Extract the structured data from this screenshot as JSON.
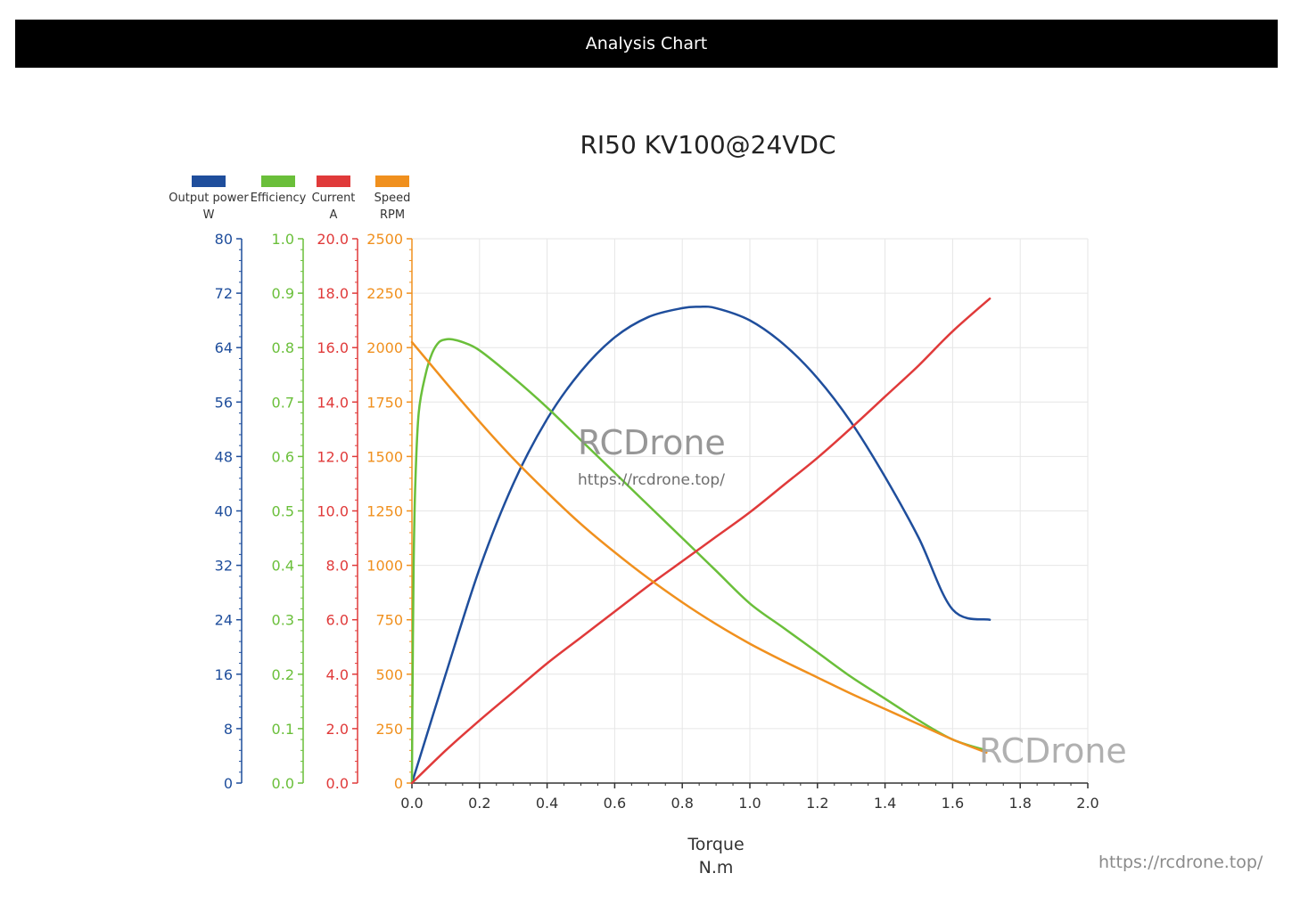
{
  "header": {
    "title": "Analysis Chart"
  },
  "watermarks": {
    "brand": "RCDrone",
    "url": "https://rcdrone.top/",
    "footer_url": "https://rcdrone.top/"
  },
  "chart_data": {
    "type": "line",
    "title": "RI50 KV100@24VDC",
    "xlabel": "Torque",
    "xunit": "N.m",
    "xlim": [
      0,
      2.0
    ],
    "xticks": [
      "0.0",
      "0.2",
      "0.4",
      "0.6",
      "0.8",
      "1.0",
      "1.2",
      "1.4",
      "1.6",
      "1.8",
      "2.0"
    ],
    "grid": true,
    "legend_position": "top-left",
    "axes": [
      {
        "key": "power",
        "name": "Output power",
        "unit": "W",
        "color": "#1f4e9c",
        "ylim": [
          0,
          80
        ],
        "ticks": [
          "0",
          "8",
          "16",
          "24",
          "32",
          "40",
          "48",
          "56",
          "64",
          "72",
          "80"
        ]
      },
      {
        "key": "eff",
        "name": "Efficiency",
        "unit": "",
        "color": "#6abf3a",
        "ylim": [
          0,
          1.0
        ],
        "ticks": [
          "0.0",
          "0.1",
          "0.2",
          "0.3",
          "0.4",
          "0.5",
          "0.6",
          "0.7",
          "0.8",
          "0.9",
          "1.0"
        ]
      },
      {
        "key": "current",
        "name": "Current",
        "unit": "A",
        "color": "#e03a3a",
        "ylim": [
          0,
          20
        ],
        "ticks": [
          "0.0",
          "2.0",
          "4.0",
          "6.0",
          "8.0",
          "10.0",
          "12.0",
          "14.0",
          "16.0",
          "18.0",
          "20.0"
        ]
      },
      {
        "key": "speed",
        "name": "Speed",
        "unit": "RPM",
        "color": "#f0901e",
        "ylim": [
          0,
          2500
        ],
        "ticks": [
          "0",
          "250",
          "500",
          "750",
          "1000",
          "1250",
          "1500",
          "1750",
          "2000",
          "2250",
          "2500"
        ]
      }
    ],
    "series": [
      {
        "axis": "power",
        "color": "#1f4e9c",
        "x": [
          0,
          0.1,
          0.2,
          0.3,
          0.4,
          0.5,
          0.6,
          0.7,
          0.8,
          0.85,
          0.9,
          1.0,
          1.1,
          1.2,
          1.3,
          1.4,
          1.5,
          1.6,
          1.71
        ],
        "y": [
          0,
          16,
          31.5,
          44,
          53.5,
          60.5,
          65.5,
          68.5,
          69.8,
          70,
          69.8,
          68,
          64.5,
          59.5,
          53,
          45,
          36,
          25.5,
          24
        ]
      },
      {
        "axis": "eff",
        "color": "#6abf3a",
        "x": [
          0,
          0.002,
          0.005,
          0.01,
          0.02,
          0.04,
          0.06,
          0.08,
          0.1,
          0.12,
          0.15,
          0.2,
          0.3,
          0.4,
          0.5,
          0.6,
          0.7,
          0.8,
          0.9,
          1.0,
          1.1,
          1.2,
          1.3,
          1.4,
          1.5,
          1.6,
          1.7
        ],
        "y": [
          0,
          0.2,
          0.4,
          0.55,
          0.68,
          0.75,
          0.79,
          0.81,
          0.815,
          0.815,
          0.81,
          0.795,
          0.745,
          0.69,
          0.63,
          0.57,
          0.51,
          0.45,
          0.39,
          0.33,
          0.285,
          0.24,
          0.195,
          0.155,
          0.115,
          0.08,
          0.06
        ]
      },
      {
        "axis": "current",
        "color": "#e03a3a",
        "x": [
          0,
          0.1,
          0.2,
          0.3,
          0.4,
          0.5,
          0.6,
          0.7,
          0.8,
          0.9,
          1.0,
          1.1,
          1.2,
          1.3,
          1.4,
          1.5,
          1.6,
          1.71
        ],
        "y": [
          0,
          1.2,
          2.3,
          3.35,
          4.4,
          5.35,
          6.3,
          7.25,
          8.15,
          9.05,
          9.95,
          10.95,
          11.95,
          13.05,
          14.2,
          15.35,
          16.6,
          17.8
        ]
      },
      {
        "axis": "speed",
        "color": "#f0901e",
        "x": [
          0,
          0.1,
          0.2,
          0.3,
          0.4,
          0.5,
          0.6,
          0.7,
          0.8,
          0.9,
          1.0,
          1.1,
          1.2,
          1.3,
          1.4,
          1.5,
          1.6,
          1.7
        ],
        "y": [
          2025,
          1840,
          1660,
          1490,
          1335,
          1190,
          1060,
          940,
          830,
          730,
          640,
          560,
          485,
          410,
          340,
          270,
          200,
          140
        ]
      }
    ]
  }
}
